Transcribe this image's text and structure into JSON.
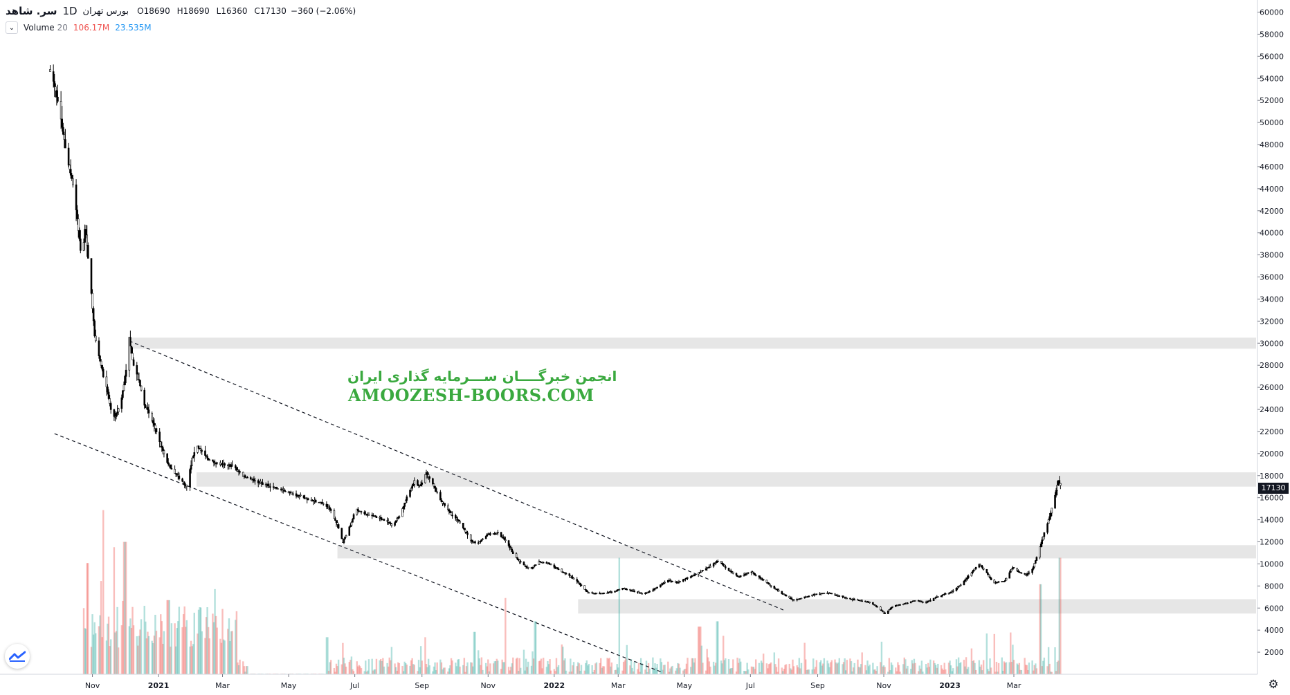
{
  "header": {
    "symbol": "سر. شاهد",
    "interval": "1D",
    "exchange": "بورس تهران",
    "open_label": "O",
    "open": "18690",
    "high_label": "H",
    "high": "18690",
    "low_label": "L",
    "low": "16360",
    "close_label": "C",
    "close": "17130",
    "change": "−360 (−2.06%)"
  },
  "volume_legend": {
    "name": "Volume",
    "length": "20",
    "value": "106.17M",
    "ma_value": "23.535M"
  },
  "watermark": {
    "line1": "انجمن خبرگــــان ســـرمایه گذاری ایران",
    "line2": "AMOOZESH-BOORS.COM"
  },
  "last_price_tag": "17130",
  "colors": {
    "candle": "#000000",
    "volume_up": "#26a69a",
    "volume_down": "#ef5350",
    "zone": "#e6e6e6",
    "watermark": "#3aa93f",
    "price_tag_bg": "#131722"
  },
  "chart_data": {
    "type": "candlestick",
    "price_axis": {
      "min": 0,
      "max": 60000,
      "ticks": [
        "2000",
        "4000",
        "6000",
        "8000",
        "10000",
        "12000",
        "14000",
        "16000",
        "18000",
        "20000",
        "22000",
        "24000",
        "26000",
        "28000",
        "30000",
        "32000",
        "34000",
        "36000",
        "38000",
        "40000",
        "42000",
        "44000",
        "46000",
        "48000",
        "50000",
        "52000",
        "54000",
        "56000",
        "58000",
        "60000"
      ]
    },
    "time_axis": {
      "labels": [
        "Nov",
        "2021",
        "Mar",
        "May",
        "Jul",
        "Sep",
        "Nov",
        "2022",
        "Mar",
        "May",
        "Jul",
        "Sep",
        "Nov",
        "2023",
        "Mar"
      ]
    },
    "price_path": [
      [
        "2020-09-23",
        54800
      ],
      [
        "2020-10-01",
        51500
      ],
      [
        "2020-10-08",
        47200
      ],
      [
        "2020-10-14",
        44500
      ],
      [
        "2020-10-20",
        39500
      ],
      [
        "2020-10-22",
        37000
      ],
      [
        "2020-10-25",
        40500
      ],
      [
        "2020-10-30",
        36000
      ],
      [
        "2020-11-03",
        30500
      ],
      [
        "2020-11-10",
        27500
      ],
      [
        "2020-11-15",
        25500
      ],
      [
        "2020-11-20",
        23000
      ],
      [
        "2020-11-27",
        24500
      ],
      [
        "2020-12-02",
        27500
      ],
      [
        "2020-12-05",
        30500
      ],
      [
        "2020-12-09",
        28000
      ],
      [
        "2020-12-14",
        26500
      ],
      [
        "2020-12-19",
        24500
      ],
      [
        "2020-12-26",
        23000
      ],
      [
        "2021-01-02",
        21000
      ],
      [
        "2021-01-10",
        19000
      ],
      [
        "2021-01-20",
        17800
      ],
      [
        "2021-01-27",
        17000
      ],
      [
        "2021-02-01",
        19500
      ],
      [
        "2021-02-05",
        20800
      ],
      [
        "2021-02-11",
        20000
      ],
      [
        "2021-02-18",
        19300
      ],
      [
        "2021-02-28",
        19000
      ],
      [
        "2021-03-10",
        18900
      ],
      [
        "2021-03-20",
        18000
      ],
      [
        "2021-04-01",
        17500
      ],
      [
        "2021-04-15",
        17000
      ],
      [
        "2021-05-01",
        16500
      ],
      [
        "2021-05-15",
        16000
      ],
      [
        "2021-06-01",
        15500
      ],
      [
        "2021-06-08",
        15000
      ],
      [
        "2021-06-15",
        13500
      ],
      [
        "2021-06-20",
        12000
      ],
      [
        "2021-06-27",
        13500
      ],
      [
        "2021-07-02",
        15000
      ],
      [
        "2021-07-10",
        14500
      ],
      [
        "2021-07-20",
        14300
      ],
      [
        "2021-07-28",
        14000
      ],
      [
        "2021-08-05",
        13500
      ],
      [
        "2021-08-12",
        14500
      ],
      [
        "2021-08-20",
        16500
      ],
      [
        "2021-08-25",
        17500
      ],
      [
        "2021-08-30",
        17000
      ],
      [
        "2021-09-05",
        18200
      ],
      [
        "2021-09-12",
        17000
      ],
      [
        "2021-09-18",
        15800
      ],
      [
        "2021-09-28",
        14500
      ],
      [
        "2021-10-08",
        13500
      ],
      [
        "2021-10-15",
        12200
      ],
      [
        "2021-10-22",
        11800
      ],
      [
        "2021-11-01",
        12700
      ],
      [
        "2021-11-10",
        12800
      ],
      [
        "2021-11-18",
        12000
      ],
      [
        "2021-11-25",
        10800
      ],
      [
        "2021-12-02",
        10000
      ],
      [
        "2021-12-10",
        9500
      ],
      [
        "2021-12-18",
        10200
      ],
      [
        "2021-12-28",
        10000
      ],
      [
        "2022-01-08",
        9300
      ],
      [
        "2022-01-20",
        8600
      ],
      [
        "2022-02-01",
        7400
      ],
      [
        "2022-02-12",
        7300
      ],
      [
        "2022-02-25",
        7500
      ],
      [
        "2022-03-05",
        7800
      ],
      [
        "2022-03-15",
        7500
      ],
      [
        "2022-03-25",
        7300
      ],
      [
        "2022-04-05",
        7800
      ],
      [
        "2022-04-15",
        8500
      ],
      [
        "2022-04-25",
        8300
      ],
      [
        "2022-05-05",
        8800
      ],
      [
        "2022-05-15",
        9200
      ],
      [
        "2022-05-25",
        9800
      ],
      [
        "2022-06-01",
        10300
      ],
      [
        "2022-06-10",
        9500
      ],
      [
        "2022-06-20",
        8800
      ],
      [
        "2022-07-01",
        9300
      ],
      [
        "2022-07-10",
        8700
      ],
      [
        "2022-07-20",
        8000
      ],
      [
        "2022-08-01",
        7200
      ],
      [
        "2022-08-10",
        6700
      ],
      [
        "2022-08-20",
        7000
      ],
      [
        "2022-09-01",
        7300
      ],
      [
        "2022-09-10",
        7400
      ],
      [
        "2022-09-20",
        7100
      ],
      [
        "2022-10-01",
        6800
      ],
      [
        "2022-10-10",
        6700
      ],
      [
        "2022-10-20",
        6500
      ],
      [
        "2022-10-27",
        6000
      ],
      [
        "2022-11-02",
        5500
      ],
      [
        "2022-11-10",
        6200
      ],
      [
        "2022-11-20",
        6400
      ],
      [
        "2022-12-01",
        6700
      ],
      [
        "2022-12-10",
        6500
      ],
      [
        "2022-12-20",
        7000
      ],
      [
        "2023-01-01",
        7400
      ],
      [
        "2023-01-10",
        8000
      ],
      [
        "2023-01-20",
        9100
      ],
      [
        "2023-01-28",
        10000
      ],
      [
        "2023-02-03",
        9300
      ],
      [
        "2023-02-10",
        8300
      ],
      [
        "2023-02-20",
        8400
      ],
      [
        "2023-02-28",
        9700
      ],
      [
        "2023-03-05",
        9300
      ],
      [
        "2023-03-12",
        9000
      ],
      [
        "2023-03-18",
        9500
      ],
      [
        "2023-03-21",
        10300
      ],
      [
        "2023-03-25",
        11500
      ],
      [
        "2023-03-29",
        12800
      ],
      [
        "2023-04-03",
        14300
      ],
      [
        "2023-04-07",
        15800
      ],
      [
        "2023-04-11",
        17500
      ],
      [
        "2023-04-13",
        17130
      ]
    ],
    "zones": [
      {
        "from": 29500,
        "to": 30500,
        "start": "2020-12-05"
      },
      {
        "from": 17000,
        "to": 18300,
        "start": "2021-02-05"
      },
      {
        "from": 10500,
        "to": 11700,
        "start": "2021-06-15"
      },
      {
        "from": 5500,
        "to": 6800,
        "start": "2022-01-23"
      }
    ],
    "trendlines": [
      {
        "from": [
          "2020-12-05",
          30200
        ],
        "to": [
          "2022-08-01",
          5800
        ]
      },
      {
        "from": [
          "2020-09-27",
          21800
        ],
        "to": [
          "2022-04-10",
          200
        ]
      }
    ],
    "volume_spikes": [
      [
        "2020-10-28",
        10.5
      ],
      [
        "2020-11-12",
        15.5
      ],
      [
        "2020-11-20",
        12.0
      ],
      [
        "2020-12-01",
        12.5
      ],
      [
        "2021-01-10",
        7.0
      ],
      [
        "2021-06-05",
        3.5
      ],
      [
        "2021-09-03",
        3.5
      ],
      [
        "2021-10-20",
        4.0
      ],
      [
        "2021-11-18",
        7.2
      ],
      [
        "2021-12-15",
        5.0
      ],
      [
        "2022-03-03",
        11.0
      ],
      [
        "2022-05-15",
        4.5
      ],
      [
        "2022-06-01",
        5.0
      ],
      [
        "2023-02-10",
        3.8
      ],
      [
        "2023-03-25",
        8.5
      ],
      [
        "2023-04-13",
        11.0
      ]
    ]
  }
}
